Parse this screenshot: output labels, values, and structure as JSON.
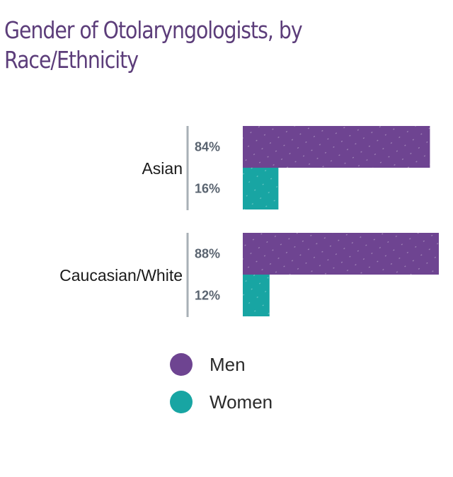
{
  "colors": {
    "title": "#5c3d7a",
    "men": "#6e4491",
    "women": "#18a5a3",
    "axis": "#a8b0b6"
  },
  "chart_data": {
    "type": "bar",
    "orientation": "horizontal",
    "title": "Gender of Otolaryngologists, by Race/Ethnicity",
    "categories": [
      "Asian",
      "Caucasian/White"
    ],
    "series": [
      {
        "name": "Men",
        "values": [
          84,
          88
        ],
        "labels": [
          "84%",
          "88%"
        ]
      },
      {
        "name": "Women",
        "values": [
          16,
          12
        ],
        "labels": [
          "16%",
          "12%"
        ]
      }
    ],
    "unit": "%",
    "xlim": [
      0,
      88
    ],
    "grid": false,
    "legend": "bottom"
  },
  "legend": [
    {
      "label": "Men",
      "icon": "circle-icon"
    },
    {
      "label": "Women",
      "icon": "circle-icon"
    }
  ]
}
